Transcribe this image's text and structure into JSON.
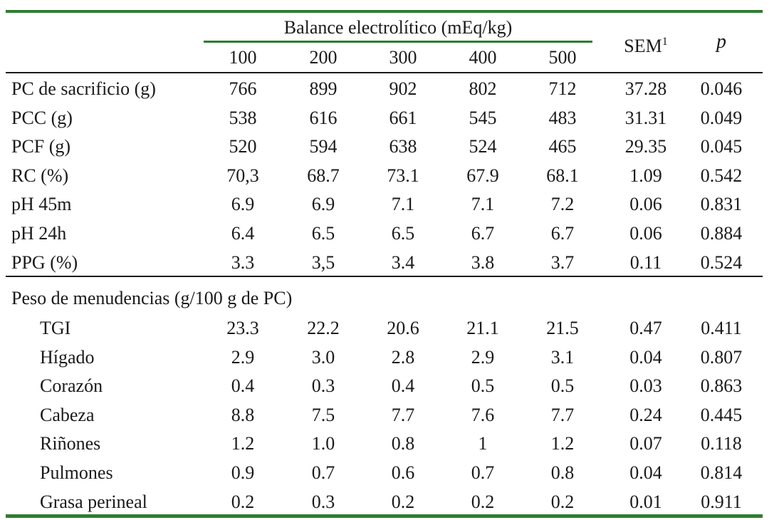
{
  "table": {
    "group_header": "Balance electrolítico (mEq/kg)",
    "levels": [
      "100",
      "200",
      "300",
      "400",
      "500"
    ],
    "sem_label": "SEM",
    "sem_footnote": "1",
    "p_label": "p",
    "section1_rows": [
      {
        "label": "PC de sacrificio (g)",
        "values": [
          "766",
          "899",
          "902",
          "802",
          "712"
        ],
        "sem": "37.28",
        "p": "0.046"
      },
      {
        "label": "PCC (g)",
        "values": [
          "538",
          "616",
          "661",
          "545",
          "483"
        ],
        "sem": "31.31",
        "p": "0.049"
      },
      {
        "label": "PCF (g)",
        "values": [
          "520",
          "594",
          "638",
          "524",
          "465"
        ],
        "sem": "29.35",
        "p": "0.045"
      },
      {
        "label": "RC (%)",
        "values": [
          "70,3",
          "68.7",
          "73.1",
          "67.9",
          "68.1"
        ],
        "sem": "1.09",
        "p": "0.542"
      },
      {
        "label": "pH 45m",
        "values": [
          "6.9",
          "6.9",
          "7.1",
          "7.1",
          "7.2"
        ],
        "sem": "0.06",
        "p": "0.831"
      },
      {
        "label": "pH 24h",
        "values": [
          "6.4",
          "6.5",
          "6.5",
          "6.7",
          "6.7"
        ],
        "sem": "0.06",
        "p": "0.884"
      },
      {
        "label": "PPG (%)",
        "values": [
          "3.3",
          "3,5",
          "3.4",
          "3.8",
          "3.7"
        ],
        "sem": "0.11",
        "p": "0.524"
      }
    ],
    "section2_title": "Peso de menudencias (g/100 g de PC)",
    "section2_rows": [
      {
        "label": "TGI",
        "values": [
          "23.3",
          "22.2",
          "20.6",
          "21.1",
          "21.5"
        ],
        "sem": "0.47",
        "p": "0.411"
      },
      {
        "label": "Hígado",
        "values": [
          "2.9",
          "3.0",
          "2.8",
          "2.9",
          "3.1"
        ],
        "sem": "0.04",
        "p": "0.807"
      },
      {
        "label": "Corazón",
        "values": [
          "0.4",
          "0.3",
          "0.4",
          "0.5",
          "0.5"
        ],
        "sem": "0.03",
        "p": "0.863"
      },
      {
        "label": "Cabeza",
        "values": [
          "8.8",
          "7.5",
          "7.7",
          "7.6",
          "7.7"
        ],
        "sem": "0.24",
        "p": "0.445"
      },
      {
        "label": "Riñones",
        "values": [
          "1.2",
          "1.0",
          "0.8",
          "1",
          "1.2"
        ],
        "sem": "0.07",
        "p": "0.118"
      },
      {
        "label": "Pulmones",
        "values": [
          "0.9",
          "0.7",
          "0.6",
          "0.7",
          "0.8"
        ],
        "sem": "0.04",
        "p": "0.814"
      },
      {
        "label": "Grasa perineal",
        "values": [
          "0.2",
          "0.3",
          "0.2",
          "0.2",
          "0.2"
        ],
        "sem": "0.01",
        "p": "0.911"
      }
    ]
  },
  "colors": {
    "rule_green": "#2e7d32",
    "rule_black": "#1a1a1a",
    "text": "#1a1a1a"
  }
}
